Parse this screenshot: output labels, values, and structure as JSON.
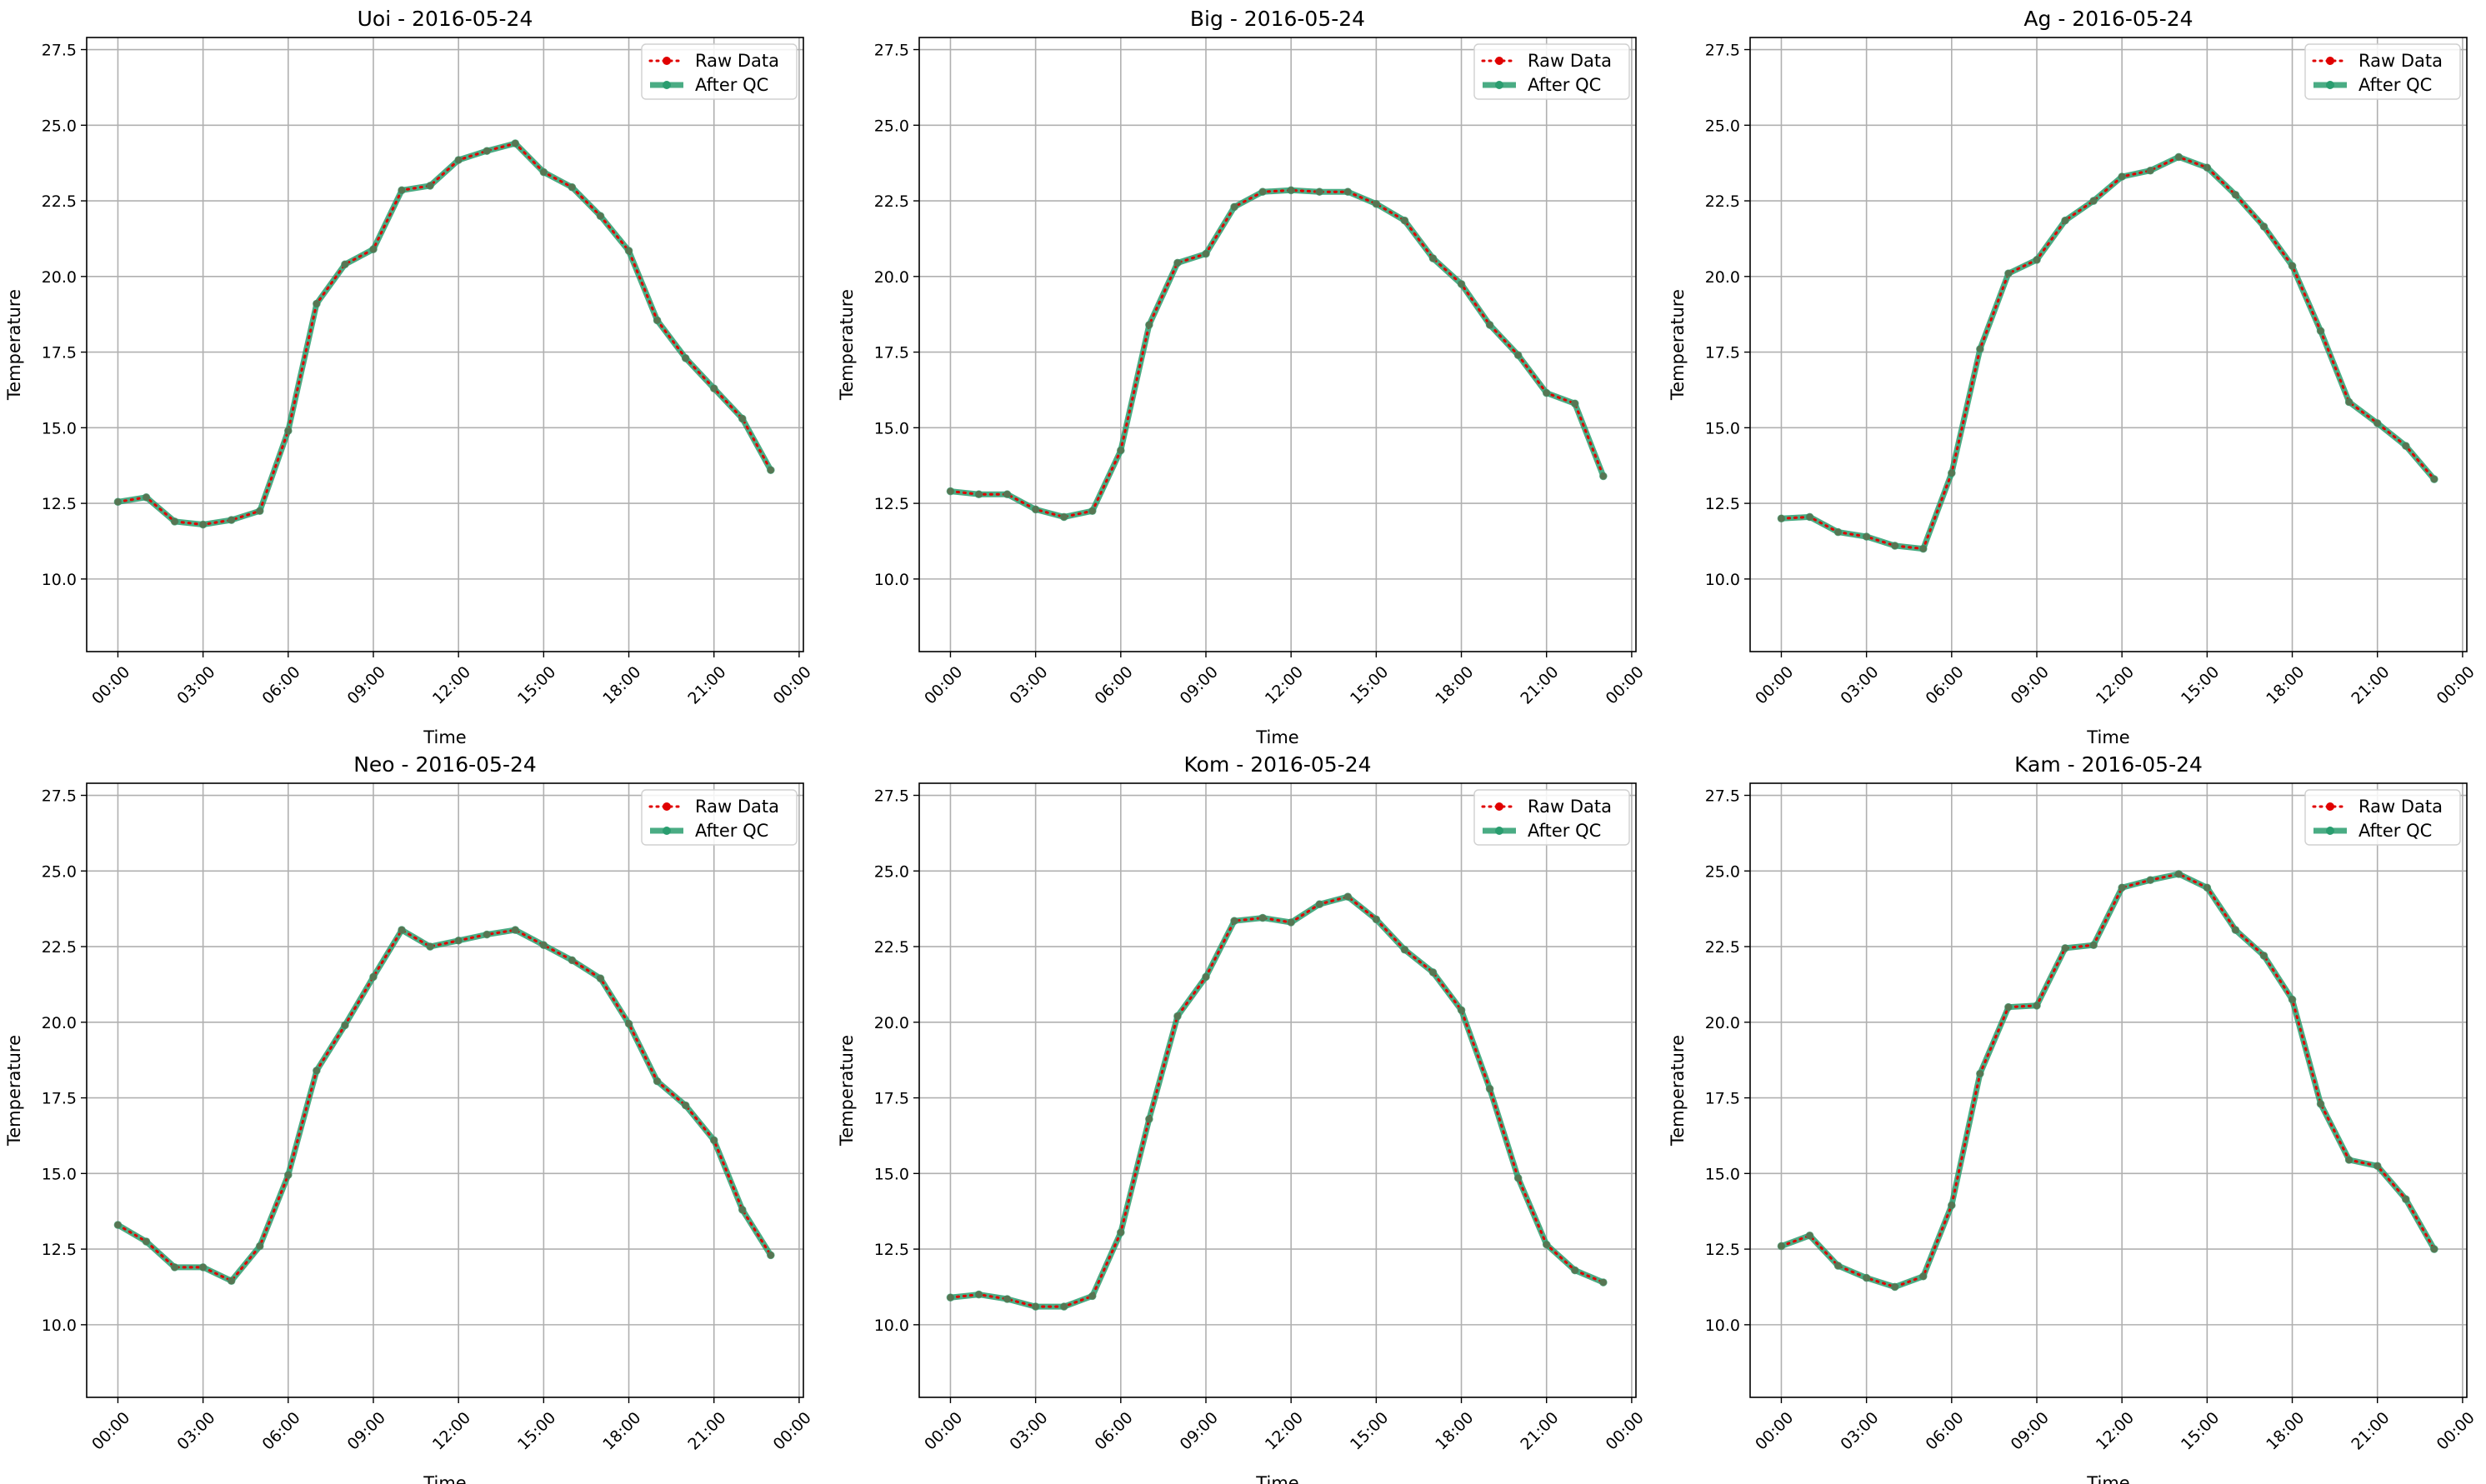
{
  "chart_data": [
    {
      "type": "line",
      "title": "Uoi - 2016-05-24",
      "xlabel": "Time",
      "ylabel": "Temperature",
      "x": [
        "00:00",
        "01:00",
        "02:00",
        "03:00",
        "04:00",
        "05:00",
        "06:00",
        "07:00",
        "08:00",
        "09:00",
        "10:00",
        "11:00",
        "12:00",
        "13:00",
        "14:00",
        "15:00",
        "16:00",
        "17:00",
        "18:00",
        "19:00",
        "20:00",
        "21:00",
        "22:00",
        "23:00"
      ],
      "xticks": [
        "00:00",
        "03:00",
        "06:00",
        "09:00",
        "12:00",
        "15:00",
        "18:00",
        "21:00",
        "00:00"
      ],
      "yticks": [
        "10.0",
        "12.5",
        "15.0",
        "17.5",
        "20.0",
        "22.5",
        "25.0",
        "27.5"
      ],
      "ylim": [
        7.6,
        27.9
      ],
      "grid": true,
      "legend": "top-right",
      "series": [
        {
          "name": "Raw Data",
          "color": "#e00000",
          "values": [
            12.55,
            12.7,
            11.9,
            11.8,
            11.95,
            12.25,
            14.9,
            19.1,
            20.4,
            20.9,
            22.85,
            23.0,
            23.85,
            24.15,
            24.4,
            23.45,
            22.95,
            22.0,
            20.85,
            18.55,
            17.3,
            16.3,
            15.3,
            13.6
          ]
        },
        {
          "name": "After QC",
          "color": "#2a9d6f",
          "values": [
            12.55,
            12.7,
            11.9,
            11.8,
            11.95,
            12.25,
            14.9,
            19.1,
            20.4,
            20.9,
            22.85,
            23.0,
            23.85,
            24.15,
            24.4,
            23.45,
            22.95,
            22.0,
            20.85,
            18.55,
            17.3,
            16.3,
            15.3,
            13.6
          ]
        }
      ]
    },
    {
      "type": "line",
      "title": "Big - 2016-05-24",
      "xlabel": "Time",
      "ylabel": "Temperature",
      "x": [
        "00:00",
        "01:00",
        "02:00",
        "03:00",
        "04:00",
        "05:00",
        "06:00",
        "07:00",
        "08:00",
        "09:00",
        "10:00",
        "11:00",
        "12:00",
        "13:00",
        "14:00",
        "15:00",
        "16:00",
        "17:00",
        "18:00",
        "19:00",
        "20:00",
        "21:00",
        "22:00",
        "23:00"
      ],
      "xticks": [
        "00:00",
        "03:00",
        "06:00",
        "09:00",
        "12:00",
        "15:00",
        "18:00",
        "21:00",
        "00:00"
      ],
      "yticks": [
        "10.0",
        "12.5",
        "15.0",
        "17.5",
        "20.0",
        "22.5",
        "25.0",
        "27.5"
      ],
      "ylim": [
        7.6,
        27.9
      ],
      "grid": true,
      "legend": "top-right",
      "series": [
        {
          "name": "Raw Data",
          "color": "#e00000",
          "values": [
            12.9,
            12.8,
            12.8,
            12.3,
            12.05,
            12.25,
            14.25,
            18.4,
            20.45,
            20.75,
            22.3,
            22.8,
            22.85,
            22.8,
            22.8,
            22.4,
            21.85,
            20.6,
            19.75,
            18.4,
            17.4,
            16.15,
            15.8,
            13.4
          ]
        },
        {
          "name": "After QC",
          "color": "#2a9d6f",
          "values": [
            12.9,
            12.8,
            12.8,
            12.3,
            12.05,
            12.25,
            14.25,
            18.4,
            20.45,
            20.75,
            22.3,
            22.8,
            22.85,
            22.8,
            22.8,
            22.4,
            21.85,
            20.6,
            19.75,
            18.4,
            17.4,
            16.15,
            15.8,
            13.4
          ]
        }
      ]
    },
    {
      "type": "line",
      "title": "Ag - 2016-05-24",
      "xlabel": "Time",
      "ylabel": "Temperature",
      "x": [
        "00:00",
        "01:00",
        "02:00",
        "03:00",
        "04:00",
        "05:00",
        "06:00",
        "07:00",
        "08:00",
        "09:00",
        "10:00",
        "11:00",
        "12:00",
        "13:00",
        "14:00",
        "15:00",
        "16:00",
        "17:00",
        "18:00",
        "19:00",
        "20:00",
        "21:00",
        "22:00",
        "23:00"
      ],
      "xticks": [
        "00:00",
        "03:00",
        "06:00",
        "09:00",
        "12:00",
        "15:00",
        "18:00",
        "21:00",
        "00:00"
      ],
      "yticks": [
        "10.0",
        "12.5",
        "15.0",
        "17.5",
        "20.0",
        "22.5",
        "25.0",
        "27.5"
      ],
      "ylim": [
        7.6,
        27.9
      ],
      "grid": true,
      "legend": "top-right",
      "series": [
        {
          "name": "Raw Data",
          "color": "#e00000",
          "values": [
            12.0,
            12.05,
            11.55,
            11.4,
            11.1,
            11.0,
            13.5,
            17.6,
            20.1,
            20.55,
            21.85,
            22.5,
            23.3,
            23.5,
            23.95,
            23.6,
            22.7,
            21.65,
            20.35,
            18.2,
            15.85,
            15.15,
            14.4,
            13.3
          ]
        },
        {
          "name": "After QC",
          "color": "#2a9d6f",
          "values": [
            12.0,
            12.05,
            11.55,
            11.4,
            11.1,
            11.0,
            13.5,
            17.6,
            20.1,
            20.55,
            21.85,
            22.5,
            23.3,
            23.5,
            23.95,
            23.6,
            22.7,
            21.65,
            20.35,
            18.2,
            15.85,
            15.15,
            14.4,
            13.3
          ]
        }
      ]
    },
    {
      "type": "line",
      "title": "Neo - 2016-05-24",
      "xlabel": "Time",
      "ylabel": "Temperature",
      "x": [
        "00:00",
        "01:00",
        "02:00",
        "03:00",
        "04:00",
        "05:00",
        "06:00",
        "07:00",
        "08:00",
        "09:00",
        "10:00",
        "11:00",
        "12:00",
        "13:00",
        "14:00",
        "15:00",
        "16:00",
        "17:00",
        "18:00",
        "19:00",
        "20:00",
        "21:00",
        "22:00",
        "23:00"
      ],
      "xticks": [
        "00:00",
        "03:00",
        "06:00",
        "09:00",
        "12:00",
        "15:00",
        "18:00",
        "21:00",
        "00:00"
      ],
      "yticks": [
        "10.0",
        "12.5",
        "15.0",
        "17.5",
        "20.0",
        "22.5",
        "25.0",
        "27.5"
      ],
      "ylim": [
        7.6,
        27.9
      ],
      "grid": true,
      "legend": "top-right",
      "series": [
        {
          "name": "Raw Data",
          "color": "#e00000",
          "values": [
            13.3,
            12.75,
            11.9,
            11.9,
            11.45,
            12.6,
            14.95,
            18.4,
            19.9,
            21.5,
            23.05,
            22.5,
            22.7,
            22.9,
            23.05,
            22.55,
            22.05,
            21.45,
            19.95,
            18.05,
            17.25,
            16.1,
            13.8,
            12.3
          ]
        },
        {
          "name": "After QC",
          "color": "#2a9d6f",
          "values": [
            13.3,
            12.75,
            11.9,
            11.9,
            11.45,
            12.6,
            14.95,
            18.4,
            19.9,
            21.5,
            23.05,
            22.5,
            22.7,
            22.9,
            23.05,
            22.55,
            22.05,
            21.45,
            19.95,
            18.05,
            17.25,
            16.1,
            13.8,
            12.3
          ]
        }
      ]
    },
    {
      "type": "line",
      "title": "Kom - 2016-05-24",
      "xlabel": "Time",
      "ylabel": "Temperature",
      "x": [
        "00:00",
        "01:00",
        "02:00",
        "03:00",
        "04:00",
        "05:00",
        "06:00",
        "07:00",
        "08:00",
        "09:00",
        "10:00",
        "11:00",
        "12:00",
        "13:00",
        "14:00",
        "15:00",
        "16:00",
        "17:00",
        "18:00",
        "19:00",
        "20:00",
        "21:00",
        "22:00",
        "23:00"
      ],
      "xticks": [
        "00:00",
        "03:00",
        "06:00",
        "09:00",
        "12:00",
        "15:00",
        "18:00",
        "21:00",
        "00:00"
      ],
      "yticks": [
        "10.0",
        "12.5",
        "15.0",
        "17.5",
        "20.0",
        "22.5",
        "25.0",
        "27.5"
      ],
      "ylim": [
        7.6,
        27.9
      ],
      "grid": true,
      "legend": "top-right",
      "series": [
        {
          "name": "Raw Data",
          "color": "#e00000",
          "values": [
            10.9,
            11.0,
            10.85,
            10.6,
            10.6,
            10.95,
            13.05,
            16.8,
            20.2,
            21.5,
            23.35,
            23.45,
            23.3,
            23.9,
            24.15,
            23.4,
            22.4,
            21.65,
            20.4,
            17.8,
            14.85,
            12.65,
            11.8,
            11.4
          ]
        },
        {
          "name": "After QC",
          "color": "#2a9d6f",
          "values": [
            10.9,
            11.0,
            10.85,
            10.6,
            10.6,
            10.95,
            13.05,
            16.8,
            20.2,
            21.5,
            23.35,
            23.45,
            23.3,
            23.9,
            24.15,
            23.4,
            22.4,
            21.65,
            20.4,
            17.8,
            14.85,
            12.65,
            11.8,
            11.4
          ]
        }
      ]
    },
    {
      "type": "line",
      "title": "Kam - 2016-05-24",
      "xlabel": "Time",
      "ylabel": "Temperature",
      "x": [
        "00:00",
        "01:00",
        "02:00",
        "03:00",
        "04:00",
        "05:00",
        "06:00",
        "07:00",
        "08:00",
        "09:00",
        "10:00",
        "11:00",
        "12:00",
        "13:00",
        "14:00",
        "15:00",
        "16:00",
        "17:00",
        "18:00",
        "19:00",
        "20:00",
        "21:00",
        "22:00",
        "23:00"
      ],
      "xticks": [
        "00:00",
        "03:00",
        "06:00",
        "09:00",
        "12:00",
        "15:00",
        "18:00",
        "21:00",
        "00:00"
      ],
      "yticks": [
        "10.0",
        "12.5",
        "15.0",
        "17.5",
        "20.0",
        "22.5",
        "25.0",
        "27.5"
      ],
      "ylim": [
        7.6,
        27.9
      ],
      "grid": true,
      "legend": "top-right",
      "series": [
        {
          "name": "Raw Data",
          "color": "#e00000",
          "values": [
            12.6,
            12.95,
            11.95,
            11.55,
            11.25,
            11.6,
            13.95,
            18.3,
            20.5,
            20.55,
            22.45,
            22.55,
            24.45,
            24.7,
            24.9,
            24.45,
            23.05,
            22.2,
            20.75,
            17.3,
            15.45,
            15.25,
            14.15,
            12.5
          ]
        },
        {
          "name": "After QC",
          "color": "#2a9d6f",
          "values": [
            12.6,
            12.95,
            11.95,
            11.55,
            11.25,
            11.6,
            13.95,
            18.3,
            20.5,
            20.55,
            22.45,
            22.55,
            24.45,
            24.7,
            24.9,
            24.45,
            23.05,
            22.2,
            20.75,
            17.3,
            15.45,
            15.25,
            14.15,
            12.5
          ]
        }
      ]
    }
  ]
}
